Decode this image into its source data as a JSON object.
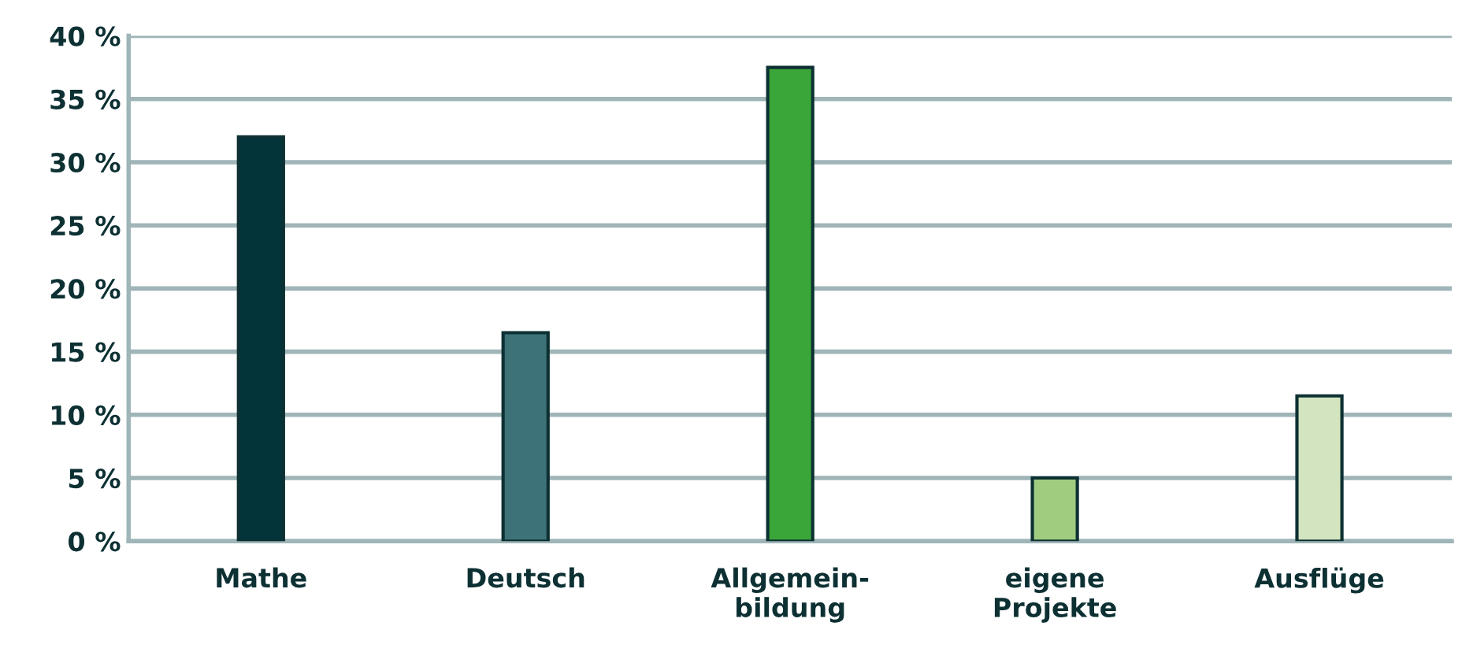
{
  "chart_data": {
    "type": "bar",
    "categories": [
      "Mathe",
      "Deutsch",
      "Allgemein-\nbildung",
      "eigene\nProjekte",
      "Ausflüge"
    ],
    "values": [
      32,
      16.5,
      37.5,
      5,
      11.5
    ],
    "colors": [
      "#03343a",
      "#3d7378",
      "#3aa63a",
      "#a0cc80",
      "#d3e4c0"
    ],
    "ylim": [
      0,
      40
    ],
    "yticks": [
      {
        "value": 0,
        "label": "0 %"
      },
      {
        "value": 5,
        "label": "5 %"
      },
      {
        "value": 10,
        "label": "10 %"
      },
      {
        "value": 15,
        "label": "15 %"
      },
      {
        "value": 20,
        "label": "20 %"
      },
      {
        "value": 25,
        "label": "25 %"
      },
      {
        "value": 30,
        "label": "30 %"
      },
      {
        "value": 35,
        "label": "35 %"
      },
      {
        "value": 40,
        "label": "40 %"
      }
    ],
    "grid": "y"
  }
}
